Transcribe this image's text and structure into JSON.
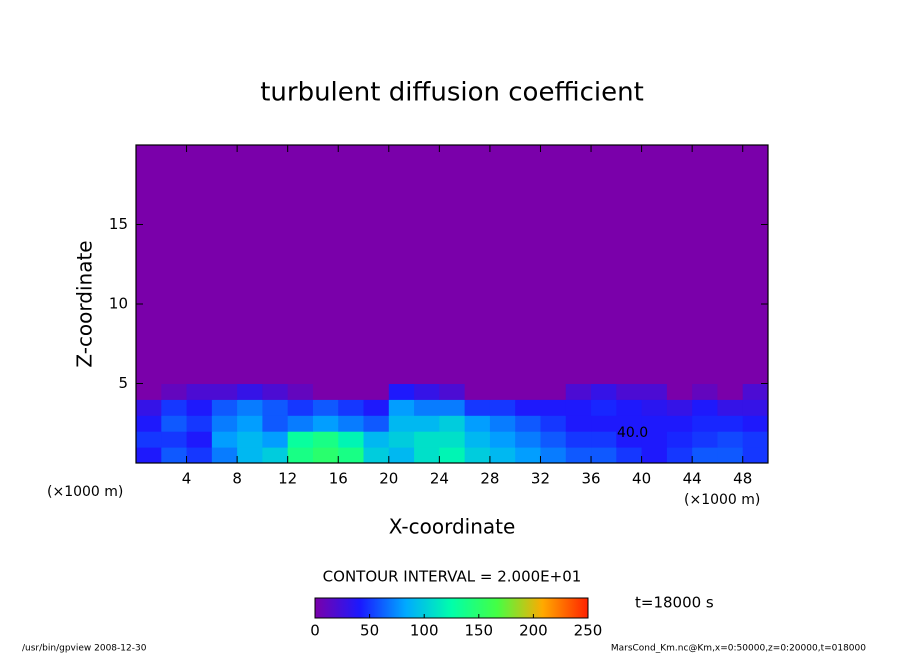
{
  "chart_data": {
    "type": "heatmap",
    "title": "turbulent diffusion coefficient",
    "x_label": "X-coordinate",
    "y_label": "Z-coordinate",
    "x_unit_labels": [
      "(×1000 m)",
      "(×1000 m)"
    ],
    "xlim": [
      0,
      50
    ],
    "ylim": [
      0,
      20
    ],
    "xticks": [
      4,
      8,
      12,
      16,
      20,
      24,
      28,
      32,
      36,
      40,
      44,
      48
    ],
    "yticks": [
      5,
      10,
      15
    ],
    "x_edges": [
      0,
      2,
      4,
      6,
      8,
      10,
      12,
      14,
      16,
      18,
      20,
      22,
      24,
      26,
      28,
      30,
      32,
      34,
      36,
      38,
      40,
      42,
      44,
      46,
      48,
      50
    ],
    "y_edges": [
      0,
      1,
      2,
      3,
      4,
      5,
      20
    ],
    "values": [
      [
        40,
        60,
        50,
        70,
        90,
        100,
        140,
        150,
        140,
        100,
        90,
        110,
        120,
        100,
        90,
        80,
        70,
        60,
        60,
        50,
        40,
        50,
        60,
        60,
        50
      ],
      [
        50,
        50,
        40,
        80,
        90,
        80,
        130,
        140,
        120,
        90,
        100,
        110,
        110,
        90,
        80,
        70,
        60,
        50,
        50,
        40,
        40,
        45,
        50,
        55,
        50
      ],
      [
        40,
        60,
        50,
        70,
        80,
        60,
        70,
        80,
        70,
        60,
        90,
        90,
        100,
        80,
        70,
        60,
        50,
        40,
        40,
        40,
        40,
        40,
        45,
        45,
        40
      ],
      [
        30,
        50,
        40,
        60,
        70,
        60,
        50,
        60,
        50,
        40,
        80,
        70,
        70,
        50,
        50,
        40,
        40,
        40,
        45,
        40,
        35,
        30,
        40,
        30,
        30
      ],
      [
        0,
        10,
        20,
        20,
        30,
        20,
        10,
        0,
        0,
        0,
        40,
        30,
        20,
        0,
        0,
        0,
        0,
        20,
        30,
        20,
        20,
        0,
        10,
        0,
        20
      ],
      [
        0,
        0,
        0,
        0,
        0,
        0,
        0,
        0,
        0,
        0,
        0,
        0,
        0,
        0,
        0,
        0,
        0,
        0,
        0,
        0,
        0,
        0,
        0,
        0,
        0
      ]
    ],
    "colormap": [
      "#7a00aa",
      "#1a1aff",
      "#00aaff",
      "#00ffaa",
      "#44ff44",
      "#ffaa00",
      "#ff2200"
    ],
    "clim": [
      0,
      250
    ],
    "colorbar_ticks": [
      0,
      50,
      100,
      150,
      200,
      250
    ],
    "contour_label": "40.0",
    "contour_interval": "CONTOUR INTERVAL = 2.000E+01",
    "time_label": "t=18000 s",
    "footer_left": "/usr/bin/gpview  2008-12-30",
    "footer_right": "MarsCond_Km.nc@Km,x=0:50000,z=0:20000,t=018000"
  }
}
